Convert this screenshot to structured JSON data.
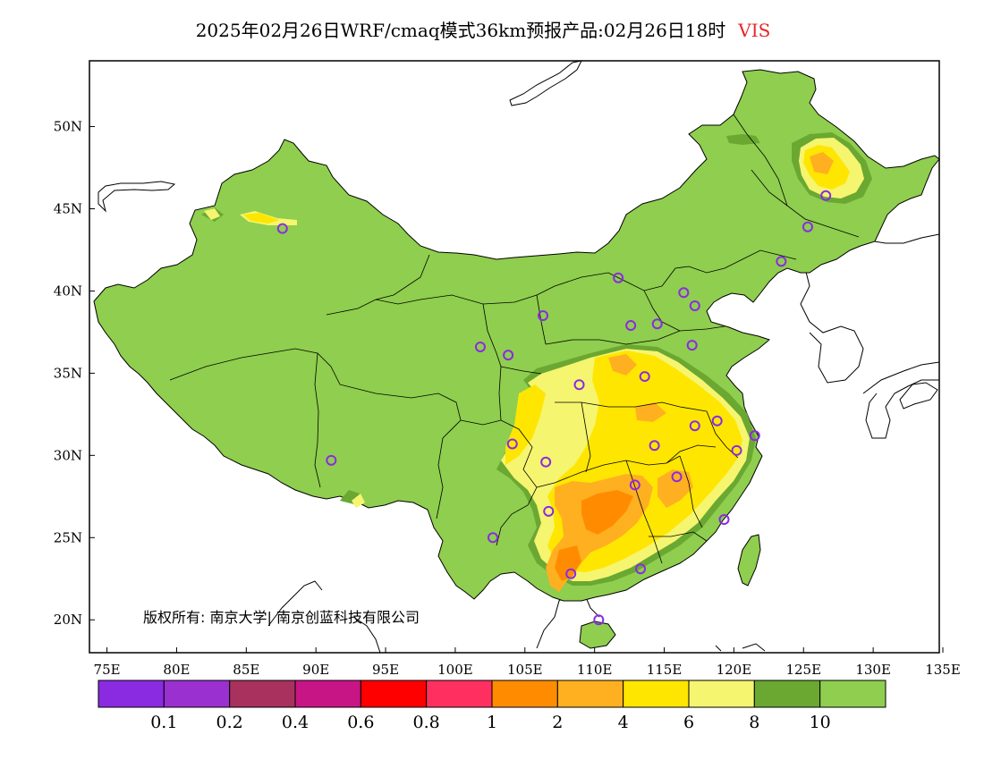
{
  "title": {
    "main": "2025年02月26日WRF/cmaq模式36km预报产品:02月26日18时",
    "variable": "VIS",
    "variable_color": "#e8262b"
  },
  "map": {
    "lon_range": [
      73,
      135
    ],
    "lat_range": [
      18,
      54
    ],
    "lon_ticks": [
      {
        "value": 75,
        "label": "75E"
      },
      {
        "value": 80,
        "label": "80E"
      },
      {
        "value": 85,
        "label": "85E"
      },
      {
        "value": 90,
        "label": "90E"
      },
      {
        "value": 95,
        "label": "95E"
      },
      {
        "value": 100,
        "label": "100E"
      },
      {
        "value": 105,
        "label": "105E"
      },
      {
        "value": 110,
        "label": "110E"
      },
      {
        "value": 115,
        "label": "115E"
      },
      {
        "value": 120,
        "label": "120E"
      },
      {
        "value": 125,
        "label": "125E"
      },
      {
        "value": 130,
        "label": "130E"
      },
      {
        "value": 135,
        "label": "135E"
      }
    ],
    "lat_ticks": [
      {
        "value": 20,
        "label": "20N"
      },
      {
        "value": 25,
        "label": "25N"
      },
      {
        "value": 30,
        "label": "30N"
      },
      {
        "value": 35,
        "label": "35N"
      },
      {
        "value": 40,
        "label": "40N"
      },
      {
        "value": 45,
        "label": "45N"
      },
      {
        "value": 50,
        "label": "50N"
      }
    ],
    "stations": [
      {
        "lon": 87.6,
        "lat": 43.8
      },
      {
        "lon": 91.1,
        "lat": 29.7
      },
      {
        "lon": 101.8,
        "lat": 36.6
      },
      {
        "lon": 103.8,
        "lat": 36.1
      },
      {
        "lon": 106.3,
        "lat": 38.5
      },
      {
        "lon": 104.1,
        "lat": 30.7
      },
      {
        "lon": 106.5,
        "lat": 29.6
      },
      {
        "lon": 106.7,
        "lat": 26.6
      },
      {
        "lon": 102.7,
        "lat": 25.0
      },
      {
        "lon": 108.3,
        "lat": 22.8
      },
      {
        "lon": 110.3,
        "lat": 20.0
      },
      {
        "lon": 113.3,
        "lat": 23.1
      },
      {
        "lon": 112.9,
        "lat": 28.2
      },
      {
        "lon": 114.3,
        "lat": 30.6
      },
      {
        "lon": 115.9,
        "lat": 28.7
      },
      {
        "lon": 119.3,
        "lat": 26.1
      },
      {
        "lon": 120.2,
        "lat": 30.3
      },
      {
        "lon": 121.5,
        "lat": 31.2
      },
      {
        "lon": 118.8,
        "lat": 32.1
      },
      {
        "lon": 117.2,
        "lat": 31.8
      },
      {
        "lon": 113.6,
        "lat": 34.8
      },
      {
        "lon": 108.9,
        "lat": 34.3
      },
      {
        "lon": 112.6,
        "lat": 37.9
      },
      {
        "lon": 114.5,
        "lat": 38.0
      },
      {
        "lon": 117.0,
        "lat": 36.7
      },
      {
        "lon": 116.4,
        "lat": 39.9
      },
      {
        "lon": 117.2,
        "lat": 39.1
      },
      {
        "lon": 111.7,
        "lat": 40.8
      },
      {
        "lon": 123.4,
        "lat": 41.8
      },
      {
        "lon": 125.3,
        "lat": 43.9
      },
      {
        "lon": 126.6,
        "lat": 45.8
      }
    ]
  },
  "copyright": "版权所有: 南京大学| 南京创蓝科技有限公司",
  "colorbar": {
    "colors": [
      "#8a2be2",
      "#9b30d0",
      "#a8315e",
      "#c71585",
      "#ff0000",
      "#ff3060",
      "#ff8c00",
      "#ffb020",
      "#ffe600",
      "#f5f570",
      "#6aa832",
      "#8fce4e"
    ],
    "labels": [
      "0.1",
      "0.2",
      "0.4",
      "0.6",
      "0.8",
      "1",
      "2",
      "4",
      "6",
      "8",
      "10"
    ]
  }
}
